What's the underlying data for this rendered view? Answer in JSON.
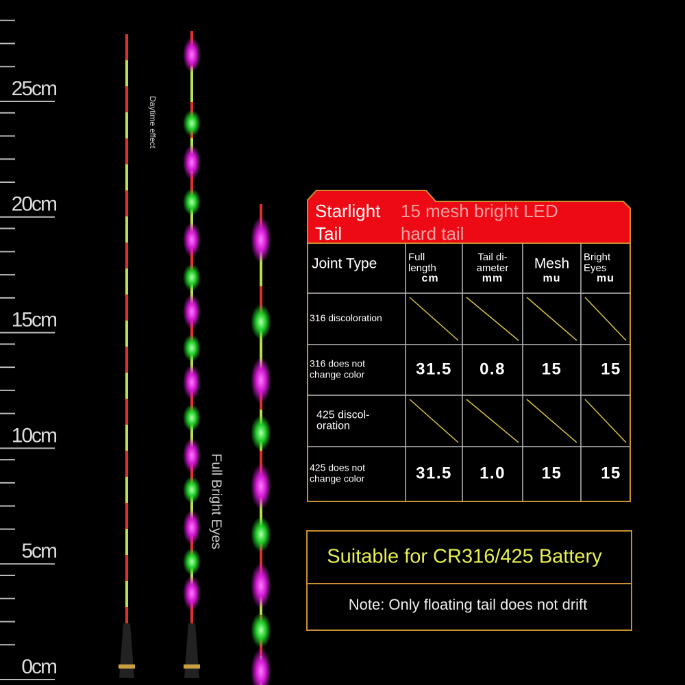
{
  "ruler": {
    "labels": [
      "25cm",
      "20cm",
      "15cm",
      "10cm",
      "5cm",
      "0cm"
    ]
  },
  "captions": {
    "daytime": "Daytime effect",
    "full_bright": "Full Bright Eyes"
  },
  "table": {
    "title_left": [
      "Starlight",
      "Tail"
    ],
    "title_right": [
      "15 mesh bright LED",
      "hard tail"
    ],
    "headers": [
      {
        "lines": [
          "Joint Type"
        ]
      },
      {
        "lines": [
          "Full",
          "length"
        ],
        "unit": "cm"
      },
      {
        "lines": [
          "Tail di-",
          "ameter"
        ],
        "unit": "mm"
      },
      {
        "lines": [
          "Mesh"
        ],
        "unit": "mu"
      },
      {
        "lines": [
          "Bright",
          "Eyes"
        ],
        "unit": "mu"
      }
    ],
    "rows": [
      {
        "joint": [
          "316 discoloration"
        ]
      },
      {
        "joint": [
          "316 does not",
          "change color"
        ],
        "values": [
          "31.5",
          "0.8",
          "15",
          "15"
        ]
      },
      {
        "joint": [
          "425 discol-",
          "oration"
        ]
      },
      {
        "joint": [
          "425 does not",
          "change color"
        ],
        "values": [
          "31.5",
          "1.0",
          "15",
          "15"
        ]
      }
    ]
  },
  "battery": "Suitable for CR316/425 Battery",
  "note": "Note: Only floating tail does not drift"
}
